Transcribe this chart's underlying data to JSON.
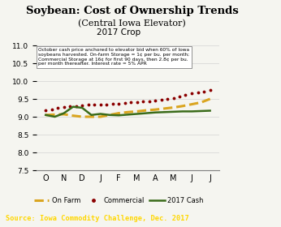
{
  "title": "Soybean: Cost of Ownership Trends",
  "subtitle": "(Central Iowa Elevator)",
  "crop_label": "2017 Crop",
  "xlabel_months": [
    "O",
    "N",
    "D",
    "J",
    "F",
    "M",
    "A",
    "M",
    "J",
    "J"
  ],
  "ylim": [
    7.5,
    11.0
  ],
  "yticks": [
    7.5,
    8.0,
    8.5,
    9.0,
    9.5,
    10.0,
    10.5,
    11.0
  ],
  "on_farm_x": [
    0,
    0.5,
    1,
    1.5,
    2,
    2.5,
    3,
    3.5,
    4,
    4.5,
    5,
    5.5,
    6,
    6.5,
    7,
    7.5,
    8,
    8.5,
    9
  ],
  "on_farm_y": [
    9.05,
    9.06,
    9.07,
    9.03,
    9.0,
    9.0,
    9.0,
    9.05,
    9.1,
    9.13,
    9.15,
    9.18,
    9.2,
    9.23,
    9.26,
    9.3,
    9.35,
    9.4,
    9.5
  ],
  "commercial_x": [
    0,
    0.33,
    0.66,
    1,
    1.33,
    1.66,
    2,
    2.33,
    2.66,
    3,
    3.33,
    3.66,
    4,
    4.33,
    4.66,
    5,
    5.33,
    5.66,
    6,
    6.33,
    6.66,
    7,
    7.33,
    7.66,
    8,
    8.33,
    8.66,
    9
  ],
  "commercial_y": [
    9.18,
    9.21,
    9.24,
    9.27,
    9.29,
    9.3,
    9.32,
    9.33,
    9.33,
    9.34,
    9.35,
    9.36,
    9.37,
    9.38,
    9.4,
    9.41,
    9.43,
    9.44,
    9.46,
    9.48,
    9.5,
    9.52,
    9.57,
    9.62,
    9.65,
    9.68,
    9.71,
    9.75
  ],
  "cash_x": [
    0,
    0.5,
    1,
    1.5,
    2,
    2.5,
    3,
    3.5,
    4,
    4.5,
    5,
    5.5,
    6,
    6.5,
    7,
    7.5,
    8,
    8.5,
    9
  ],
  "cash_y": [
    9.05,
    9.0,
    9.1,
    9.28,
    9.25,
    9.05,
    9.08,
    9.05,
    9.04,
    9.06,
    9.08,
    9.1,
    9.12,
    9.13,
    9.14,
    9.15,
    9.15,
    9.16,
    9.17
  ],
  "on_farm_color": "#DAA520",
  "commercial_color": "#8B0000",
  "cash_color": "#3A6B1A",
  "annotation_text": "October cash price anchored to elevator bid when 60% of Iowa\nsoybeans harvested. On-farm Storage = 1¢ per bu. per month;\nCommercial Storage at 16¢ for first 90 days, then 2.8¢ per bu.\nper month thereafter. Interest rate = 5% APR",
  "source_text": "Source: Iowa Commodity Challenge, Dec. 2017",
  "source_bg": "#4B6E3A",
  "source_text_color": "#FFD700",
  "background_color": "#F5F5F0"
}
